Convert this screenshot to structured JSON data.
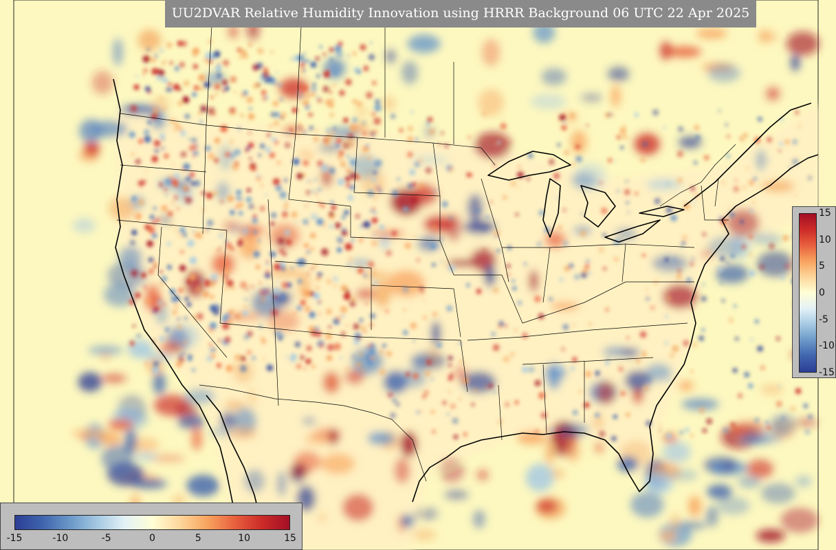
{
  "title": "UU2DVAR Relative Humidity Innovation using HRRR Background 06 UTC 22 Apr 2025",
  "colorbar": {
    "min": -15,
    "max": 15,
    "vertical_ticks": [
      "15",
      "10",
      "5",
      "0",
      "-5",
      "-10",
      "-15"
    ],
    "horizontal_ticks": [
      "-15",
      "-10",
      "-5",
      "0",
      "5",
      "10",
      "15"
    ],
    "colors": [
      "#2c3e94",
      "#3f64ad",
      "#6a98c8",
      "#a5c9e2",
      "#e3f1f6",
      "#ffffd6",
      "#fdd79c",
      "#f8a45f",
      "#e8603e",
      "#cc2b28",
      "#a30f25"
    ]
  },
  "map": {
    "background": "#fdf8c0",
    "land": "#fff4b8",
    "projection": "Lambert Conformal",
    "region": "CONUS"
  }
}
